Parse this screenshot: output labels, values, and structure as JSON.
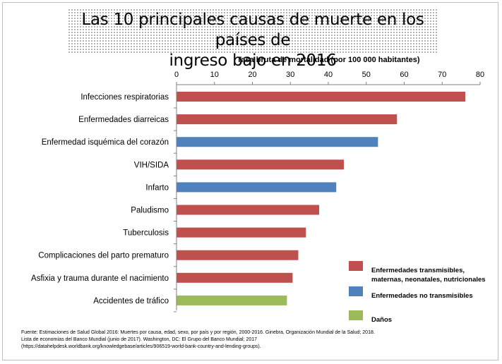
{
  "chart_data": {
    "type": "bar",
    "orientation": "horizontal",
    "title_lines": [
      "Las 10 principales causas de muerte en los países de",
      "ingreso bajo en 2016"
    ],
    "xlabel": "Tasa  bruta de mortalidad  (por 100 000 habitantes)",
    "xlim": [
      0,
      80
    ],
    "xticks": [
      "0",
      "10",
      "20",
      "30",
      "40",
      "50",
      "60",
      "70",
      "80"
    ],
    "categories": [
      "Infecciones respiratorias",
      "Enfermedades diarreicas",
      "Enfermedad isquémica del corazón",
      "VIH/SIDA",
      "Infarto",
      "Paludismo",
      "Tuberculosis",
      "Complicaciones del parto prematuro",
      "Asfixia y trauma durante el nacimiento",
      "Accidentes de tráfico"
    ],
    "values": [
      76,
      58,
      53,
      44,
      42,
      37.5,
      34,
      32,
      30.5,
      29
    ],
    "groups": [
      0,
      0,
      1,
      0,
      1,
      0,
      0,
      0,
      0,
      2
    ],
    "legend": [
      {
        "lines": [
          "Enfermedades transmisibles,",
          "maternas, neonatales, nutricionales"
        ],
        "color": "#c0504d"
      },
      {
        "lines": [
          "Enfermedades no transmisibles"
        ],
        "color": "#4f81bd"
      },
      {
        "lines": [
          "Daños"
        ],
        "color": "#9bbb59"
      }
    ],
    "legend_position": "bottom-right",
    "grid": false
  },
  "source_lines": [
    "Fuente: Estimaciones de Salud Global 2016: Muertes por causa, edad, sexo, por país y por región, 2000-2016. Ginebra, Organización Mundial de la Salud; 2018.",
    "Lista de economías del Banco Mundial (junio de 2017). Washington, DC: El Grupo del Banco Mundial; 2017",
    "(https://datahelpdesk.worldbank.org/knowledgebase/articles/906519-world-bank-country-and-lending-groups)."
  ]
}
